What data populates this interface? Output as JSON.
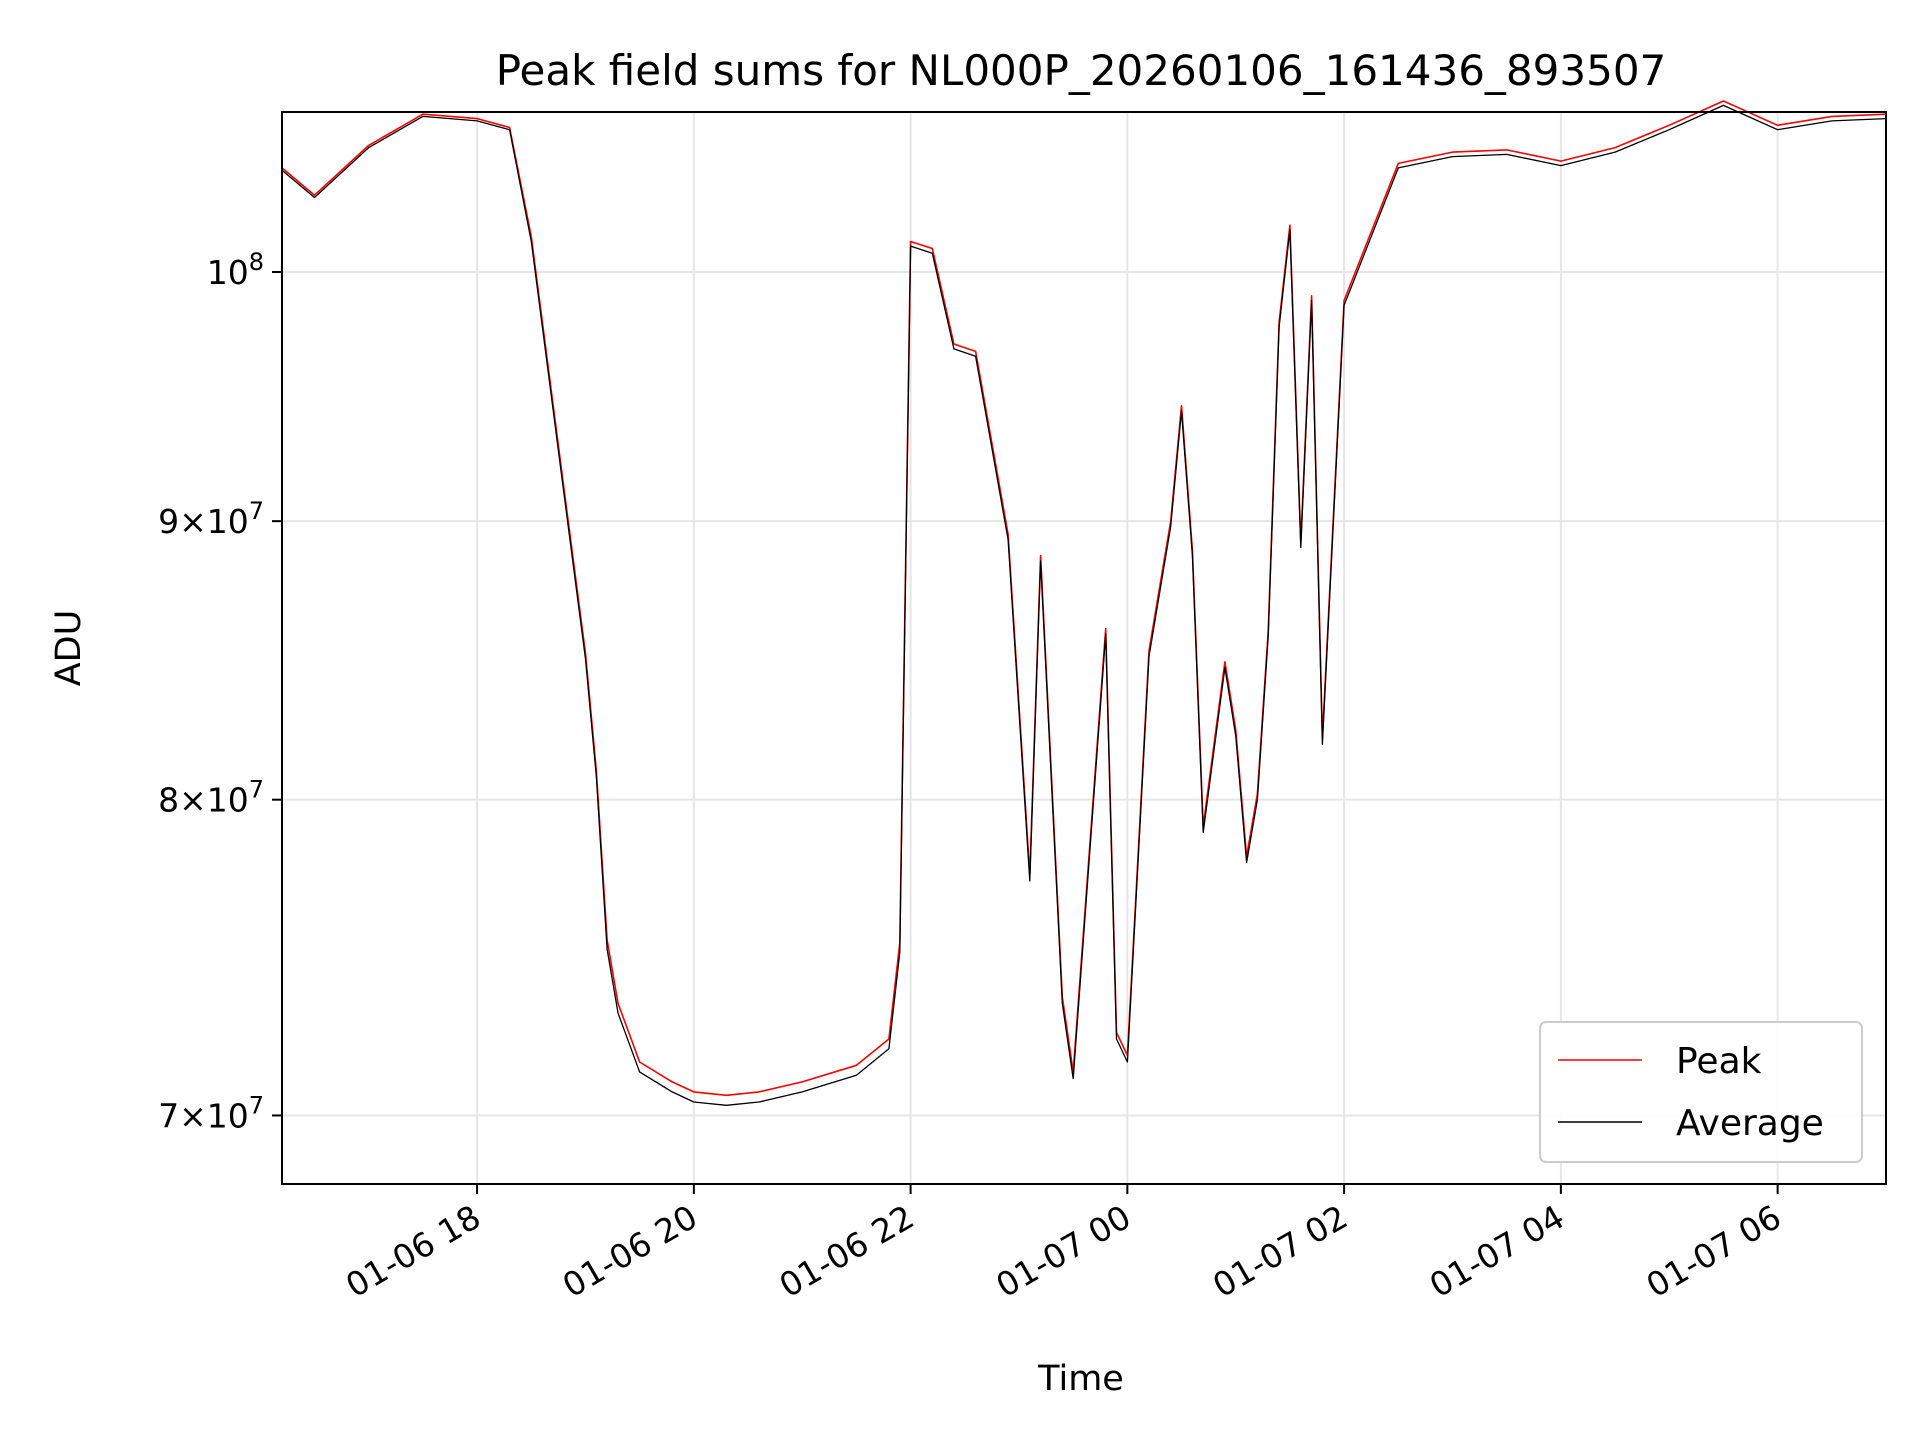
{
  "chart_data": {
    "type": "line",
    "title": "Peak field sums for NL000P_20260106_161436_893507",
    "xlabel": "Time",
    "ylabel": "ADU",
    "yscale": "log",
    "xlim_hours": [
      16.2,
      31.0
    ],
    "ylim": [
      68000000,
      107000000
    ],
    "x_ticks": [
      "01-06 18",
      "01-06 20",
      "01-06 22",
      "01-07 00",
      "01-07 02",
      "01-07 04",
      "01-07 06"
    ],
    "y_ticks": [
      {
        "value": 70000000,
        "label_mant": "7",
        "label_exp": "7",
        "style": "sci"
      },
      {
        "value": 80000000,
        "label_mant": "8",
        "label_exp": "7",
        "style": "sci"
      },
      {
        "value": 90000000,
        "label_mant": "9",
        "label_exp": "7",
        "style": "sci"
      },
      {
        "value": 100000000,
        "label_mant": "10",
        "label_exp": "8",
        "style": "pow"
      }
    ],
    "grid": true,
    "legend_position": "bottom-right",
    "series": [
      {
        "name": "Peak",
        "color": "#ff0000",
        "key": "peak"
      },
      {
        "name": "Average",
        "color": "#000000",
        "key": "average"
      }
    ],
    "x_hours": [
      16.2,
      16.5,
      17.0,
      17.5,
      18.0,
      18.3,
      18.5,
      18.8,
      19.0,
      19.1,
      19.2,
      19.3,
      19.5,
      19.8,
      20.0,
      20.3,
      20.6,
      21.0,
      21.5,
      21.8,
      21.9,
      22.0,
      22.2,
      22.4,
      22.6,
      22.9,
      23.1,
      23.2,
      23.4,
      23.5,
      23.8,
      23.9,
      24.0,
      24.2,
      24.4,
      24.5,
      24.6,
      24.7,
      24.9,
      25.0,
      25.1,
      25.2,
      25.3,
      25.4,
      25.5,
      25.6,
      25.7,
      25.8,
      26.0,
      26.5,
      27.0,
      27.5,
      28.0,
      28.5,
      29.0,
      29.5,
      30.0,
      30.5,
      31.0
    ],
    "peak": [
      104500000,
      103300000,
      105500000,
      106900000,
      106700000,
      106300000,
      101500000,
      91300000,
      85100000,
      81000000,
      75400000,
      73400000,
      71600000,
      71000000,
      70700000,
      70600000,
      70700000,
      71000000,
      71500000,
      72300000,
      75300000,
      101300000,
      101000000,
      97000000,
      96700000,
      89500000,
      77500000,
      88700000,
      73600000,
      71300000,
      86000000,
      72500000,
      71800000,
      85200000,
      90000000,
      94500000,
      88900000,
      79100000,
      84800000,
      82400000,
      78100000,
      80200000,
      85900000,
      97900000,
      102000000,
      89200000,
      99000000,
      82100000,
      98800000,
      104700000,
      105200000,
      105300000,
      104800000,
      105400000,
      106400000,
      107500000,
      106400000,
      106800000,
      106900000
    ],
    "average": [
      104400000,
      103200000,
      105400000,
      106800000,
      106600000,
      106200000,
      101300000,
      91100000,
      84900000,
      80800000,
      75100000,
      73100000,
      71300000,
      70700000,
      70400000,
      70300000,
      70400000,
      70700000,
      71200000,
      72000000,
      75000000,
      101100000,
      100800000,
      96800000,
      96500000,
      89300000,
      77300000,
      88500000,
      73400000,
      71100000,
      85800000,
      72300000,
      71600000,
      85000000,
      89800000,
      94300000,
      88700000,
      78900000,
      84600000,
      82200000,
      77900000,
      80000000,
      85700000,
      97700000,
      101800000,
      89000000,
      98800000,
      81900000,
      98600000,
      104500000,
      105000000,
      105100000,
      104600000,
      105200000,
      106200000,
      107300000,
      106200000,
      106600000,
      106700000
    ]
  }
}
